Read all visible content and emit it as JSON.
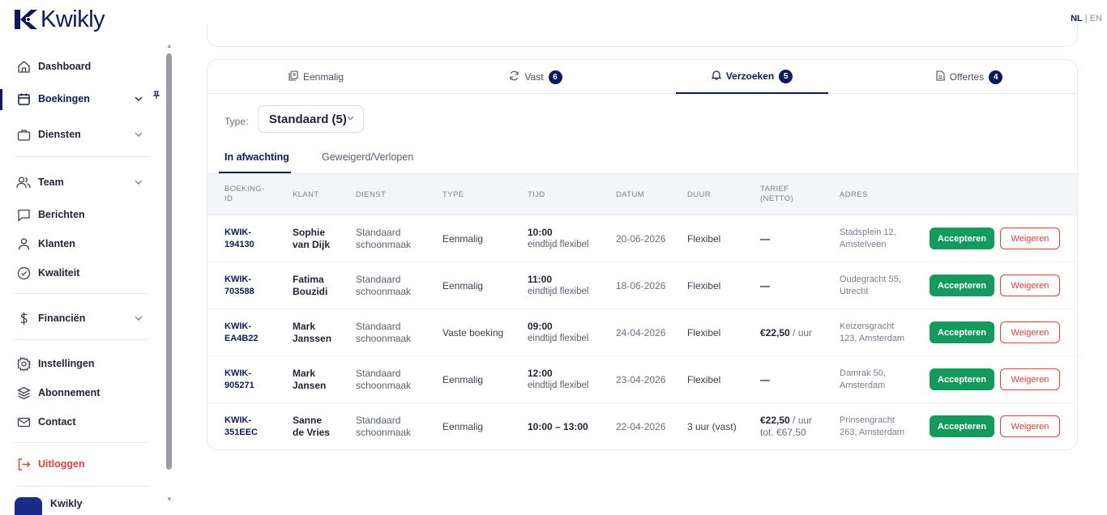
{
  "brand": {
    "name": "Kwikly"
  },
  "language": {
    "active": "NL",
    "separator": "|",
    "other": "EN"
  },
  "sidebar": {
    "items": [
      {
        "label": "Dashboard",
        "icon": "home-icon"
      },
      {
        "label": "Boekingen",
        "icon": "calendar-icon",
        "active": true
      },
      {
        "label": "Diensten",
        "icon": "briefcase-icon"
      },
      {
        "label": "Team",
        "icon": "team-icon"
      },
      {
        "label": "Berichten",
        "icon": "message-icon"
      },
      {
        "label": "Klanten",
        "icon": "user-icon"
      },
      {
        "label": "Kwaliteit",
        "icon": "check-circle-icon"
      },
      {
        "label": "Financiën",
        "icon": "dollar-icon"
      },
      {
        "label": "Instellingen",
        "icon": "gear-icon"
      },
      {
        "label": "Abonnement",
        "icon": "layers-icon"
      },
      {
        "label": "Contact",
        "icon": "mail-icon"
      },
      {
        "label": "Uitloggen",
        "icon": "logout-icon"
      }
    ],
    "user_name": "Kwikly"
  },
  "tabs": [
    {
      "label": "Eenmalig",
      "badge": ""
    },
    {
      "label": "Vast",
      "badge": "6"
    },
    {
      "label": "Verzoeken",
      "badge": "5",
      "active": true
    },
    {
      "label": "Offertes",
      "badge": "4"
    }
  ],
  "filter": {
    "type_label": "Type:",
    "type_value": "Standaard (5)"
  },
  "subtabs": {
    "pending": "In afwachting",
    "rejected": "Geweigerd/Verlopen"
  },
  "table": {
    "headers": {
      "id_line1": "BOEKING-",
      "id_line2": "ID",
      "klant": "KLANT",
      "dienst": "DIENST",
      "type": "TYPE",
      "tijd": "TIJD",
      "datum": "DATUM",
      "duur": "DUUR",
      "tarief_line1": "TARIEF",
      "tarief_line2": "(NETTO)",
      "adres": "ADRES"
    },
    "rows": [
      {
        "id1": "KWIK-",
        "id2": "194130",
        "klant1": "Sophie",
        "klant2": "van Dijk",
        "dienst1": "Standaard",
        "dienst2": "schoonmaak",
        "type": "Eenmalig",
        "tijd1": "10:00",
        "tijd2": "eindtijd flexibel",
        "datum": "20-06-2026",
        "duur": "Flexibel",
        "tarief_amount": "—",
        "tarief_unit": "",
        "tarief_total": "",
        "adres1": "Stadsplein 12,",
        "adres2": "Amstelveen"
      },
      {
        "id1": "KWIK-",
        "id2": "703588",
        "klant1": "Fatima",
        "klant2": "Bouzidi",
        "dienst1": "Standaard",
        "dienst2": "schoonmaak",
        "type": "Eenmalig",
        "tijd1": "11:00",
        "tijd2": "eindtijd flexibel",
        "datum": "18-06-2026",
        "duur": "Flexibel",
        "tarief_amount": "—",
        "tarief_unit": "",
        "tarief_total": "",
        "adres1": "Oudegracht 55,",
        "adres2": "Utrecht"
      },
      {
        "id1": "KWIK-",
        "id2": "EA4B22",
        "klant1": "Mark",
        "klant2": "Janssen",
        "dienst1": "Standaard",
        "dienst2": "schoonmaak",
        "type": "Vaste boeking",
        "tijd1": "09:00",
        "tijd2": "eindtijd flexibel",
        "datum": "24-04-2026",
        "duur": "Flexibel",
        "tarief_amount": "€22,50",
        "tarief_unit": " / uur",
        "tarief_total": "",
        "adres1": "Keizersgracht",
        "adres2": "123, Amsterdam"
      },
      {
        "id1": "KWIK-",
        "id2": "905271",
        "klant1": "Mark",
        "klant2": "Jansen",
        "dienst1": "Standaard",
        "dienst2": "schoonmaak",
        "type": "Eenmalig",
        "tijd1": "12:00",
        "tijd2": "eindtijd flexibel",
        "datum": "23-04-2026",
        "duur": "Flexibel",
        "tarief_amount": "—",
        "tarief_unit": "",
        "tarief_total": "",
        "adres1": "Damrak 50,",
        "adres2": "Amsterdam"
      },
      {
        "id1": "KWIK-",
        "id2": "351EEC",
        "klant1": "Sanne",
        "klant2": "de Vries",
        "dienst1": "Standaard",
        "dienst2": "schoonmaak",
        "type": "Eenmalig",
        "tijd1": "10:00 – 13:00",
        "tijd2": "",
        "datum": "22-04-2026",
        "duur": "3 uur (vast)",
        "tarief_amount": "€22,50",
        "tarief_unit": " / uur",
        "tarief_total": "tot. €67,50",
        "adres1": "Prinsengracht",
        "adres2": "263, Amsterdam"
      }
    ],
    "accept_label": "Accepteren",
    "reject_label": "Weigeren"
  },
  "colors": {
    "brand": "#0e1a5b",
    "accept": "#159a5e",
    "reject": "#e0403a"
  }
}
